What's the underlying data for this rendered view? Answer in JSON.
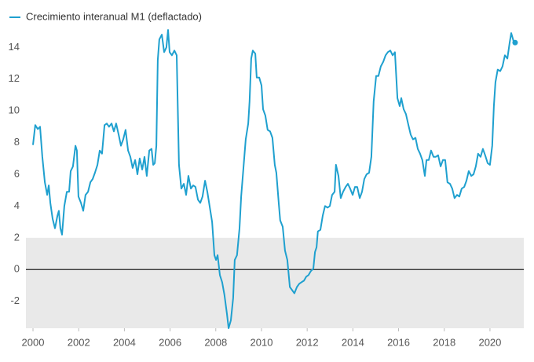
{
  "chart_data": {
    "type": "line",
    "x": [
      2000.0,
      2000.1,
      2000.21,
      2000.31,
      2000.41,
      2000.52,
      2000.62,
      2000.69,
      2000.76,
      2000.86,
      2000.96,
      2001.07,
      2001.13,
      2001.2,
      2001.27,
      2001.37,
      2001.48,
      2001.58,
      2001.65,
      2001.75,
      2001.86,
      2001.92,
      2001.99,
      2002.1,
      2002.2,
      2002.3,
      2002.41,
      2002.51,
      2002.61,
      2002.71,
      2002.82,
      2002.92,
      2003.02,
      2003.13,
      2003.23,
      2003.33,
      2003.44,
      2003.54,
      2003.64,
      2003.75,
      2003.85,
      2003.95,
      2004.05,
      2004.16,
      2004.26,
      2004.36,
      2004.47,
      2004.57,
      2004.67,
      2004.78,
      2004.88,
      2004.98,
      2005.09,
      2005.19,
      2005.26,
      2005.33,
      2005.4,
      2005.46,
      2005.53,
      2005.64,
      2005.74,
      2005.84,
      2005.91,
      2005.98,
      2006.08,
      2006.19,
      2006.29,
      2006.39,
      2006.49,
      2006.6,
      2006.7,
      2006.8,
      2006.91,
      2007.01,
      2007.11,
      2007.22,
      2007.32,
      2007.42,
      2007.53,
      2007.63,
      2007.73,
      2007.84,
      2007.94,
      2008.01,
      2008.08,
      2008.18,
      2008.28,
      2008.38,
      2008.49,
      2008.56,
      2008.66,
      2008.76,
      2008.83,
      2008.93,
      2009.04,
      2009.11,
      2009.21,
      2009.31,
      2009.42,
      2009.48,
      2009.55,
      2009.62,
      2009.73,
      2009.79,
      2009.9,
      2010.0,
      2010.07,
      2010.17,
      2010.27,
      2010.38,
      2010.48,
      2010.58,
      2010.65,
      2010.76,
      2010.82,
      2010.93,
      2011.03,
      2011.13,
      2011.24,
      2011.34,
      2011.44,
      2011.55,
      2011.65,
      2011.75,
      2011.86,
      2011.96,
      2012.06,
      2012.16,
      2012.27,
      2012.34,
      2012.41,
      2012.47,
      2012.58,
      2012.68,
      2012.78,
      2012.89,
      2012.99,
      2013.09,
      2013.2,
      2013.26,
      2013.37,
      2013.47,
      2013.57,
      2013.68,
      2013.78,
      2013.88,
      2013.99,
      2014.09,
      2014.19,
      2014.3,
      2014.4,
      2014.5,
      2014.6,
      2014.71,
      2014.81,
      2014.91,
      2015.02,
      2015.12,
      2015.22,
      2015.33,
      2015.43,
      2015.53,
      2015.64,
      2015.74,
      2015.84,
      2015.95,
      2016.05,
      2016.12,
      2016.22,
      2016.32,
      2016.43,
      2016.53,
      2016.63,
      2016.74,
      2016.84,
      2016.94,
      2017.04,
      2017.15,
      2017.22,
      2017.32,
      2017.42,
      2017.53,
      2017.63,
      2017.73,
      2017.84,
      2017.94,
      2018.04,
      2018.14,
      2018.25,
      2018.35,
      2018.45,
      2018.56,
      2018.66,
      2018.76,
      2018.87,
      2018.97,
      2019.07,
      2019.18,
      2019.28,
      2019.38,
      2019.48,
      2019.59,
      2019.69,
      2019.79,
      2019.9,
      2020.0,
      2020.1,
      2020.17,
      2020.24,
      2020.34,
      2020.45,
      2020.55,
      2020.65,
      2020.76,
      2020.86,
      2020.93,
      2021.03,
      2021.1
    ],
    "series": [
      {
        "name": "Crecimiento interanual M1 (deflactado)",
        "color": "#1fa0cf",
        "values": [
          7.85,
          9.1,
          8.85,
          9.0,
          7.1,
          5.5,
          4.7,
          5.3,
          4.2,
          3.2,
          2.6,
          3.4,
          3.7,
          2.6,
          2.2,
          4.0,
          4.9,
          4.9,
          6.2,
          6.5,
          7.8,
          7.5,
          4.6,
          4.2,
          3.7,
          4.7,
          4.9,
          5.5,
          5.7,
          6.1,
          6.6,
          7.5,
          7.3,
          9.1,
          9.2,
          9.0,
          9.2,
          8.7,
          9.2,
          8.5,
          7.8,
          8.2,
          8.8,
          7.5,
          7.1,
          6.4,
          6.9,
          6.0,
          7.0,
          6.3,
          7.1,
          5.9,
          7.5,
          7.6,
          6.6,
          6.7,
          7.8,
          13.2,
          14.5,
          14.8,
          13.7,
          14.0,
          15.1,
          13.7,
          13.5,
          13.8,
          13.5,
          6.6,
          5.1,
          5.4,
          4.7,
          5.9,
          5.1,
          5.3,
          5.2,
          4.4,
          4.2,
          4.6,
          5.6,
          4.9,
          4.0,
          3.0,
          0.9,
          0.6,
          0.9,
          -0.35,
          -0.8,
          -1.6,
          -2.8,
          -3.7,
          -3.2,
          -1.8,
          0.6,
          0.9,
          2.6,
          4.6,
          6.4,
          8.2,
          9.2,
          10.6,
          13.3,
          13.8,
          13.6,
          12.1,
          12.1,
          11.6,
          10.1,
          9.7,
          8.8,
          8.7,
          8.3,
          6.6,
          6.1,
          4.1,
          3.1,
          2.7,
          1.2,
          0.6,
          -1.1,
          -1.3,
          -1.5,
          -1.1,
          -0.9,
          -0.8,
          -0.7,
          -0.45,
          -0.35,
          -0.1,
          0.05,
          1.1,
          1.4,
          2.4,
          2.5,
          3.4,
          4.0,
          3.9,
          4.0,
          4.7,
          4.9,
          6.6,
          5.9,
          4.5,
          4.9,
          5.2,
          5.4,
          5.1,
          4.7,
          5.2,
          5.2,
          4.5,
          4.9,
          5.7,
          6.0,
          6.1,
          7.1,
          10.6,
          12.2,
          12.2,
          12.8,
          13.1,
          13.5,
          13.7,
          13.8,
          13.5,
          13.7,
          10.8,
          10.3,
          10.8,
          10.1,
          9.8,
          9.1,
          8.5,
          8.2,
          8.3,
          7.6,
          7.3,
          6.9,
          5.9,
          6.9,
          6.9,
          7.5,
          7.1,
          7.1,
          7.2,
          6.5,
          6.9,
          6.9,
          5.5,
          5.4,
          5.1,
          4.5,
          4.7,
          4.6,
          5.1,
          5.2,
          5.6,
          6.2,
          5.9,
          6.0,
          6.5,
          7.3,
          7.1,
          7.6,
          7.2,
          6.7,
          6.6,
          7.8,
          10.3,
          11.8,
          12.6,
          12.5,
          12.8,
          13.5,
          13.3,
          14.3,
          14.9,
          14.4,
          14.3
        ]
      }
    ],
    "xlim": [
      1999.69,
      2021.48
    ],
    "xticks": [
      2000,
      2002,
      2004,
      2006,
      2008,
      2010,
      2012,
      2014,
      2016,
      2018,
      2020
    ],
    "ylim": [
      -3.7,
      15.5
    ],
    "yticks": [
      -2,
      0,
      2,
      4,
      6,
      8,
      10,
      12,
      14
    ],
    "shaded_band": {
      "from": -3.7,
      "to": 2,
      "color": "#e9e9e9"
    },
    "reference_line": 0,
    "end_marker": true,
    "legend": "top-left",
    "grid": false
  }
}
